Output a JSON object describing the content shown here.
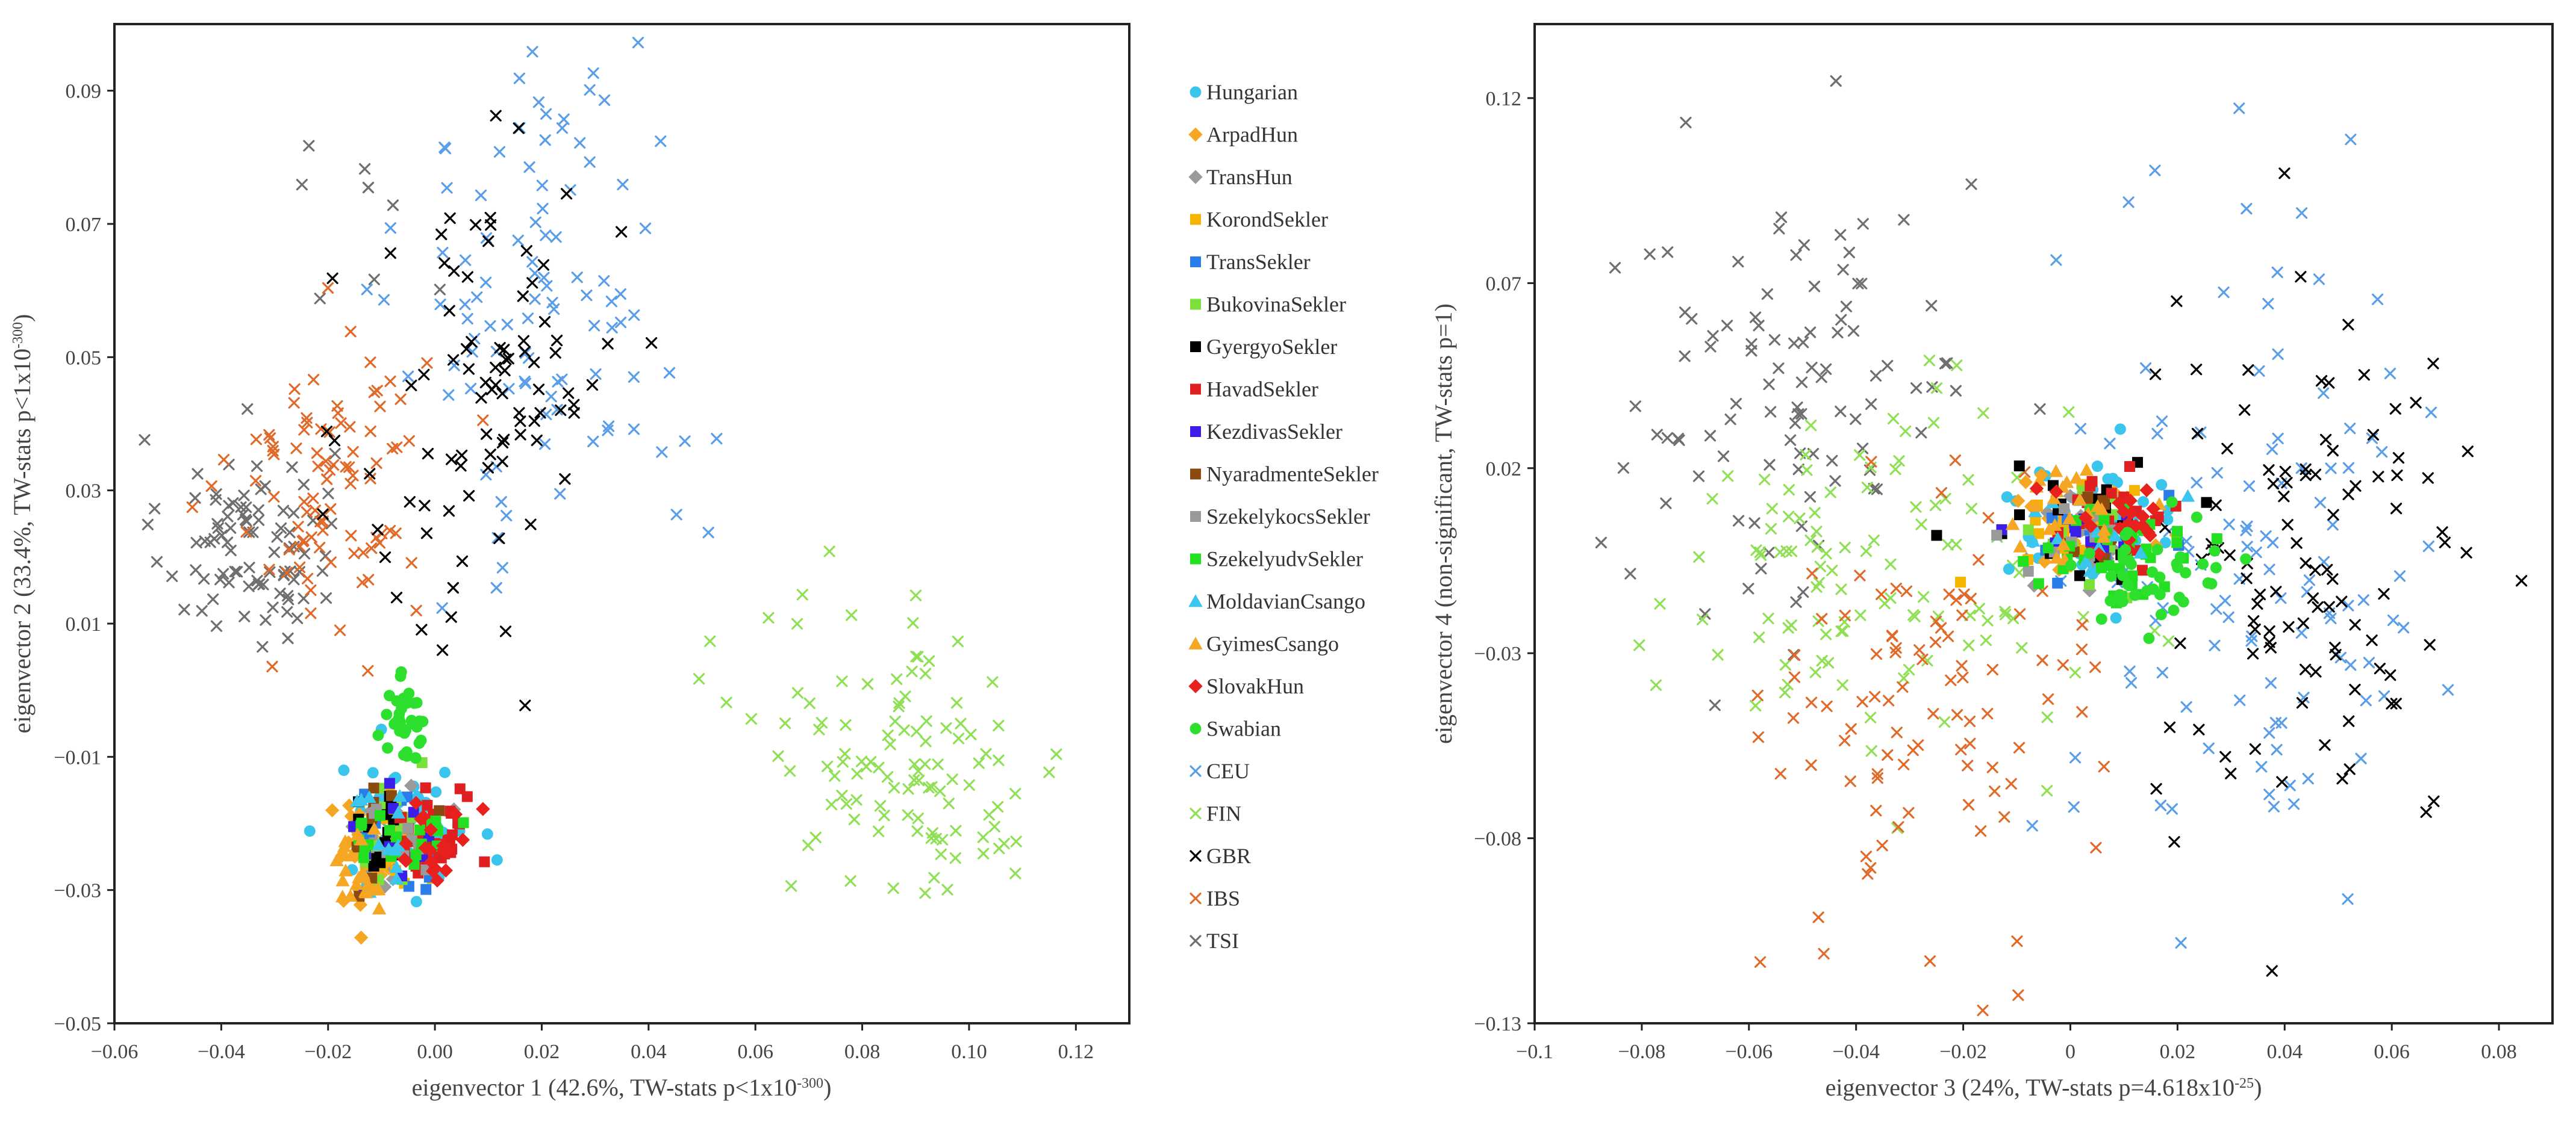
{
  "chart_data": [
    {
      "type": "scatter",
      "title": "",
      "xlabel": "eigenvector 1 (42.6%, TW-stats p<1x10",
      "xlabel_sup": "-300",
      "xlabel_end": ")",
      "ylabel": "eigenvector 2 (33.4%, TW-stats p<1x10",
      "ylabel_sup": "-300",
      "ylabel_end": ")",
      "xlim": [
        -0.06,
        0.13
      ],
      "ylim": [
        -0.05,
        0.1
      ],
      "xticks": [
        -0.06,
        -0.04,
        -0.02,
        0.0,
        0.02,
        0.04,
        0.06,
        0.08,
        0.1,
        0.12
      ],
      "xtick_labels": [
        "−0.06",
        "−0.04",
        "−0.02",
        "0.00",
        "0.02",
        "0.04",
        "0.06",
        "0.08",
        "0.10",
        "0.12"
      ],
      "yticks": [
        -0.05,
        -0.03,
        -0.01,
        0.01,
        0.03,
        0.05,
        0.07,
        0.09
      ],
      "ytick_labels": [
        "−0.05",
        "−0.03",
        "−0.01",
        "0.01",
        "0.03",
        "0.05",
        "0.07",
        "0.09"
      ],
      "clusters": [
        {
          "series": "TSI",
          "cx": -0.035,
          "cy": 0.022,
          "sx": 0.008,
          "sy": 0.008,
          "n": 90
        },
        {
          "series": "TSI",
          "cx": -0.012,
          "cy": 0.075,
          "sx": 0.012,
          "sy": 0.012,
          "n": 8
        },
        {
          "series": "IBS",
          "cx": -0.02,
          "cy": 0.032,
          "sx": 0.009,
          "sy": 0.011,
          "n": 90
        },
        {
          "series": "CEU",
          "cx": 0.022,
          "cy": 0.058,
          "sx": 0.014,
          "sy": 0.02,
          "n": 100
        },
        {
          "series": "GBR",
          "cx": 0.01,
          "cy": 0.045,
          "sx": 0.012,
          "sy": 0.022,
          "n": 90
        },
        {
          "series": "FIN",
          "cx": 0.09,
          "cy": -0.01,
          "sx": 0.015,
          "sy": 0.011,
          "n": 110
        },
        {
          "series": "Hungarian",
          "cx": -0.006,
          "cy": -0.021,
          "sx": 0.006,
          "sy": 0.005,
          "n": 60
        },
        {
          "series": "ArpadHun",
          "cx": -0.013,
          "cy": -0.024,
          "sx": 0.004,
          "sy": 0.004,
          "n": 25
        },
        {
          "series": "TransHun",
          "cx": -0.008,
          "cy": -0.022,
          "sx": 0.004,
          "sy": 0.004,
          "n": 20
        },
        {
          "series": "KorondSekler",
          "cx": -0.009,
          "cy": -0.022,
          "sx": 0.004,
          "sy": 0.004,
          "n": 20
        },
        {
          "series": "TransSekler",
          "cx": -0.008,
          "cy": -0.022,
          "sx": 0.004,
          "sy": 0.004,
          "n": 15
        },
        {
          "series": "BukovinaSekler",
          "cx": -0.008,
          "cy": -0.021,
          "sx": 0.004,
          "sy": 0.004,
          "n": 15
        },
        {
          "series": "GyergyoSekler",
          "cx": -0.01,
          "cy": -0.024,
          "sx": 0.003,
          "sy": 0.004,
          "n": 15
        },
        {
          "series": "HavadSekler",
          "cx": 0.0,
          "cy": -0.021,
          "sx": 0.004,
          "sy": 0.004,
          "n": 35
        },
        {
          "series": "KezdivasSekler",
          "cx": -0.008,
          "cy": -0.023,
          "sx": 0.004,
          "sy": 0.004,
          "n": 10
        },
        {
          "series": "NyaradmenteSekler",
          "cx": -0.008,
          "cy": -0.021,
          "sx": 0.004,
          "sy": 0.004,
          "n": 10
        },
        {
          "series": "SzekelykocsSekler",
          "cx": -0.006,
          "cy": -0.022,
          "sx": 0.004,
          "sy": 0.004,
          "n": 10
        },
        {
          "series": "SzekelyudvSekler",
          "cx": -0.006,
          "cy": -0.021,
          "sx": 0.004,
          "sy": 0.004,
          "n": 20
        },
        {
          "series": "MoldavianCsango",
          "cx": -0.01,
          "cy": -0.023,
          "sx": 0.004,
          "sy": 0.004,
          "n": 12
        },
        {
          "series": "GyimesCsango",
          "cx": -0.014,
          "cy": -0.027,
          "sx": 0.003,
          "sy": 0.003,
          "n": 25
        },
        {
          "series": "SlovakHun",
          "cx": 0.0,
          "cy": -0.022,
          "sx": 0.004,
          "sy": 0.004,
          "n": 20
        },
        {
          "series": "Swabian",
          "cx": -0.006,
          "cy": -0.005,
          "sx": 0.002,
          "sy": 0.003,
          "n": 35
        }
      ]
    },
    {
      "type": "scatter",
      "title": "",
      "xlabel": "eigenvector 3 (24%, TW-stats p=4.618x10",
      "xlabel_sup": "-25",
      "xlabel_end": ")",
      "ylabel": "eigenvector 4 (non-significant, TW-stats p=1)",
      "ylabel_sup": "",
      "ylabel_end": "",
      "xlim": [
        -0.1,
        0.09
      ],
      "ylim": [
        -0.13,
        0.14
      ],
      "xticks": [
        -0.1,
        -0.08,
        -0.06,
        -0.04,
        -0.02,
        0.0,
        0.02,
        0.04,
        0.06,
        0.08
      ],
      "xtick_labels": [
        "−0.1",
        "−0.08",
        "−0.06",
        "−0.04",
        "−0.02",
        "0",
        "0.02",
        "0.04",
        "0.06",
        "0.08"
      ],
      "yticks": [
        -0.13,
        -0.08,
        -0.03,
        0.02,
        0.07,
        0.12
      ],
      "ytick_labels": [
        "−0.13",
        "−0.08",
        "−0.03",
        "0.02",
        "0.07",
        "0.12"
      ],
      "clusters": [
        {
          "series": "TSI",
          "cx": -0.05,
          "cy": 0.04,
          "sx": 0.017,
          "sy": 0.03,
          "n": 100
        },
        {
          "series": "FIN",
          "cx": -0.04,
          "cy": -0.01,
          "sx": 0.02,
          "sy": 0.025,
          "n": 110
        },
        {
          "series": "IBS",
          "cx": -0.025,
          "cy": -0.045,
          "sx": 0.015,
          "sy": 0.03,
          "n": 95
        },
        {
          "series": "CEU",
          "cx": 0.035,
          "cy": 0.0,
          "sx": 0.017,
          "sy": 0.045,
          "n": 110
        },
        {
          "series": "GBR",
          "cx": 0.045,
          "cy": -0.01,
          "sx": 0.015,
          "sy": 0.035,
          "n": 100
        },
        {
          "series": "Hungarian",
          "cx": 0.004,
          "cy": 0.004,
          "sx": 0.008,
          "sy": 0.008,
          "n": 60
        },
        {
          "series": "ArpadHun",
          "cx": 0.0,
          "cy": 0.005,
          "sx": 0.008,
          "sy": 0.008,
          "n": 25
        },
        {
          "series": "TransHun",
          "cx": 0.003,
          "cy": 0.003,
          "sx": 0.007,
          "sy": 0.007,
          "n": 15
        },
        {
          "series": "KorondSekler",
          "cx": 0.003,
          "cy": 0.006,
          "sx": 0.006,
          "sy": 0.006,
          "n": 20
        },
        {
          "series": "TransSekler",
          "cx": 0.004,
          "cy": 0.004,
          "sx": 0.006,
          "sy": 0.006,
          "n": 12
        },
        {
          "series": "BukovinaSekler",
          "cx": 0.006,
          "cy": 0.0,
          "sx": 0.007,
          "sy": 0.007,
          "n": 15
        },
        {
          "series": "GyergyoSekler",
          "cx": 0.004,
          "cy": 0.008,
          "sx": 0.007,
          "sy": 0.007,
          "n": 20
        },
        {
          "series": "HavadSekler",
          "cx": 0.006,
          "cy": 0.004,
          "sx": 0.006,
          "sy": 0.006,
          "n": 25
        },
        {
          "series": "KezdivasSekler",
          "cx": 0.0,
          "cy": 0.0,
          "sx": 0.006,
          "sy": 0.006,
          "n": 10
        },
        {
          "series": "NyaradmenteSekler",
          "cx": 0.005,
          "cy": 0.006,
          "sx": 0.006,
          "sy": 0.006,
          "n": 10
        },
        {
          "series": "SzekelykocsSekler",
          "cx": 0.002,
          "cy": -0.002,
          "sx": 0.006,
          "sy": 0.006,
          "n": 10
        },
        {
          "series": "SzekelyudvSekler",
          "cx": 0.01,
          "cy": -0.002,
          "sx": 0.007,
          "sy": 0.007,
          "n": 40
        },
        {
          "series": "MoldavianCsango",
          "cx": 0.003,
          "cy": 0.004,
          "sx": 0.006,
          "sy": 0.006,
          "n": 12
        },
        {
          "series": "GyimesCsango",
          "cx": -0.002,
          "cy": 0.008,
          "sx": 0.007,
          "sy": 0.007,
          "n": 25
        },
        {
          "series": "SlovakHun",
          "cx": 0.01,
          "cy": 0.005,
          "sx": 0.006,
          "sy": 0.006,
          "n": 20
        },
        {
          "series": "Swabian",
          "cx": 0.014,
          "cy": -0.008,
          "sx": 0.008,
          "sy": 0.008,
          "n": 40
        }
      ]
    }
  ],
  "legend": {
    "placement": "between-panels",
    "entries": [
      {
        "name": "Hungarian",
        "color": "#39c5ec",
        "marker": "circle"
      },
      {
        "name": "ArpadHun",
        "color": "#f5a623",
        "marker": "diamond"
      },
      {
        "name": "TransHun",
        "color": "#9a9a9a",
        "marker": "diamond"
      },
      {
        "name": "KorondSekler",
        "color": "#f5b400",
        "marker": "square"
      },
      {
        "name": "TransSekler",
        "color": "#2b7de9",
        "marker": "square"
      },
      {
        "name": "BukovinaSekler",
        "color": "#7be03a",
        "marker": "square"
      },
      {
        "name": "GyergyoSekler",
        "color": "#000000",
        "marker": "square"
      },
      {
        "name": "HavadSekler",
        "color": "#e02020",
        "marker": "square"
      },
      {
        "name": "KezdivasSekler",
        "color": "#3b1ee8",
        "marker": "square"
      },
      {
        "name": "NyaradmenteSekler",
        "color": "#8b4a10",
        "marker": "square"
      },
      {
        "name": "SzekelykocsSekler",
        "color": "#9a9a9a",
        "marker": "square"
      },
      {
        "name": "SzekelyudvSekler",
        "color": "#22e020",
        "marker": "square"
      },
      {
        "name": "MoldavianCsango",
        "color": "#3ac6ee",
        "marker": "triangle"
      },
      {
        "name": "GyimesCsango",
        "color": "#f5a623",
        "marker": "triangle"
      },
      {
        "name": "SlovakHun",
        "color": "#e8201e",
        "marker": "diamond"
      },
      {
        "name": "Swabian",
        "color": "#2ee02e",
        "marker": "circle"
      },
      {
        "name": "CEU",
        "color": "#5b9ee8",
        "marker": "x"
      },
      {
        "name": "FIN",
        "color": "#8fe055",
        "marker": "x"
      },
      {
        "name": "GBR",
        "color": "#000000",
        "marker": "x"
      },
      {
        "name": "IBS",
        "color": "#e06a2a",
        "marker": "x"
      },
      {
        "name": "TSI",
        "color": "#6f6f6f",
        "marker": "x"
      }
    ]
  }
}
